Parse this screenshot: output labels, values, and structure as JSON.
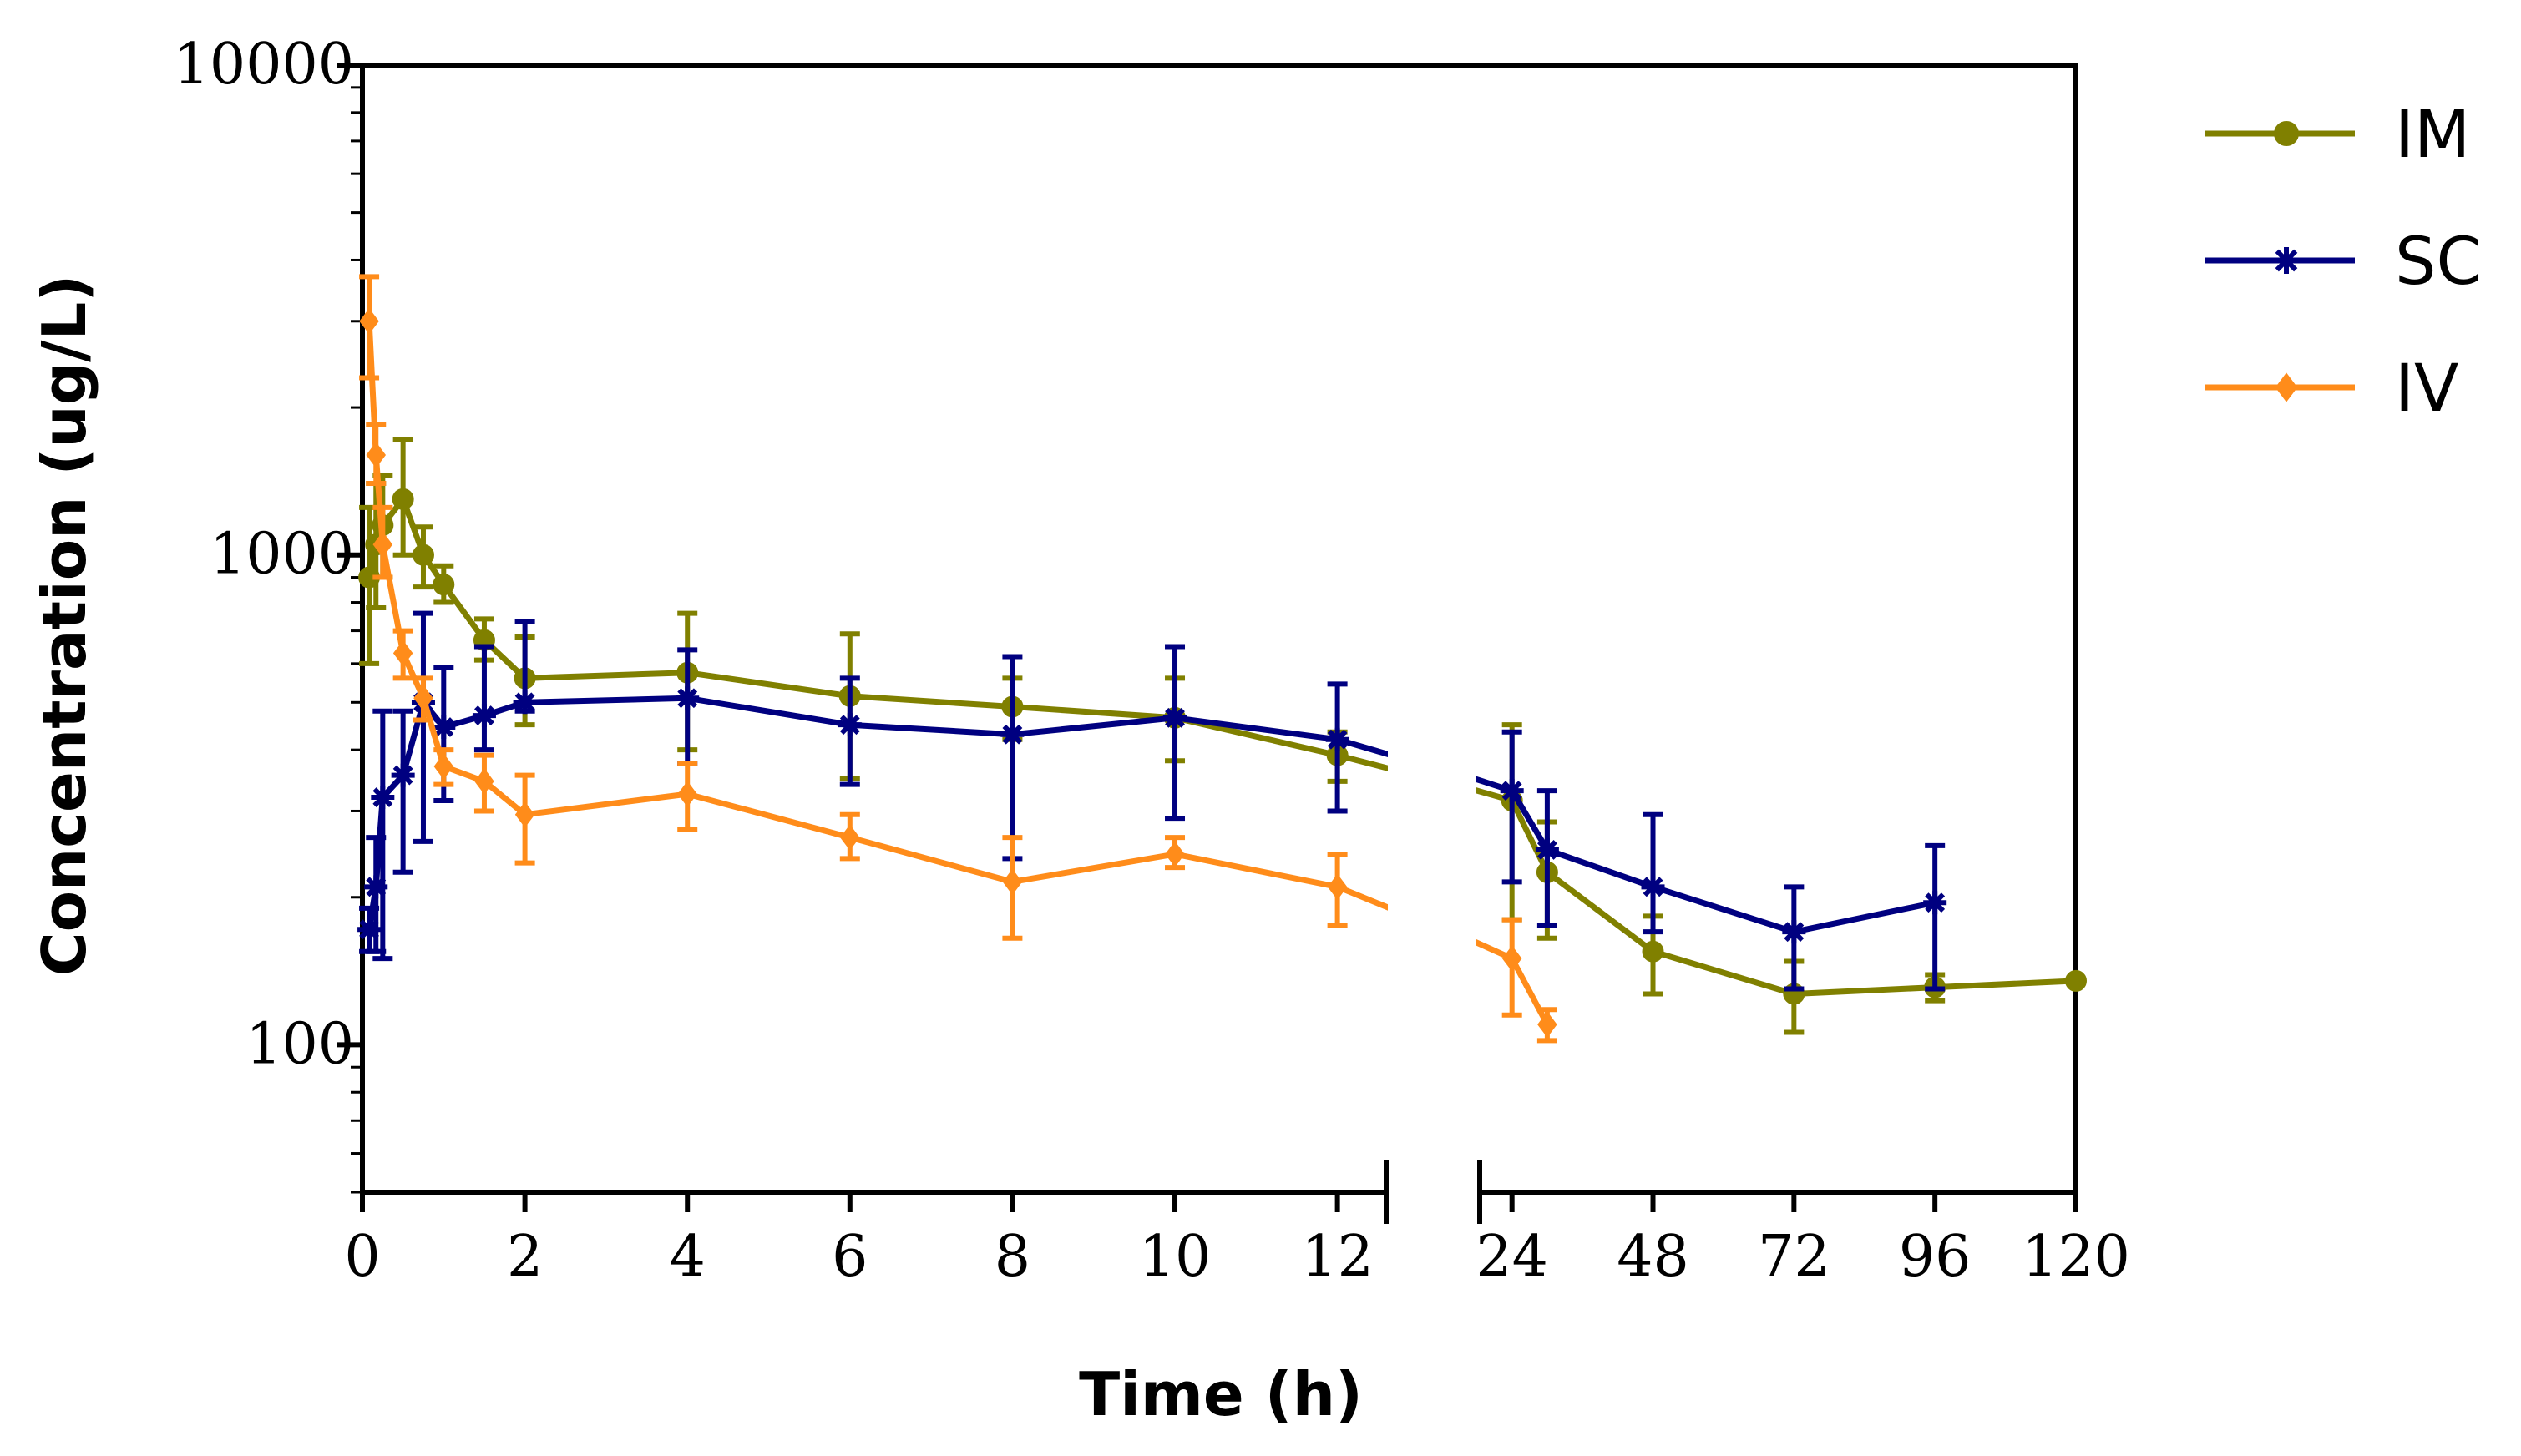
{
  "chart_data": {
    "type": "line",
    "title": "",
    "xlabel": "Time (h)",
    "ylabel": "Concentration (ug/L)",
    "yscale": "log",
    "ylim": [
      50,
      10000
    ],
    "y_ticks": [
      {
        "value": 100,
        "label": "100"
      },
      {
        "value": 1000,
        "label": "1000"
      },
      {
        "value": 10000,
        "label": "10000"
      }
    ],
    "x_segments": [
      {
        "range": [
          0,
          12.6
        ],
        "ticks": [
          {
            "value": 0,
            "label": "0"
          },
          {
            "value": 2,
            "label": "2"
          },
          {
            "value": 4,
            "label": "4"
          },
          {
            "value": 6,
            "label": "6"
          },
          {
            "value": 8,
            "label": "8"
          },
          {
            "value": 10,
            "label": "10"
          },
          {
            "value": 12,
            "label": "12"
          }
        ]
      },
      {
        "range": [
          18.5,
          120
        ],
        "ticks": [
          {
            "value": 24,
            "label": "24"
          },
          {
            "value": 48,
            "label": "48"
          },
          {
            "value": 72,
            "label": "72"
          },
          {
            "value": 96,
            "label": "96"
          },
          {
            "value": 120,
            "label": "120"
          }
        ]
      }
    ],
    "legend_position": "top-right",
    "series": [
      {
        "name": "IM",
        "color": "#808000",
        "marker": "circle",
        "points": [
          {
            "x": 0.083,
            "y": 900,
            "lo": 600,
            "hi": 1250
          },
          {
            "x": 0.167,
            "y": 1050,
            "lo": 780,
            "hi": 1400
          },
          {
            "x": 0.25,
            "y": 1150,
            "lo": 900,
            "hi": 1450
          },
          {
            "x": 0.5,
            "y": 1300,
            "lo": 1000,
            "hi": 1720
          },
          {
            "x": 0.75,
            "y": 1000,
            "lo": 860,
            "hi": 1140
          },
          {
            "x": 1,
            "y": 870,
            "lo": 800,
            "hi": 950
          },
          {
            "x": 1.5,
            "y": 670,
            "lo": 610,
            "hi": 740
          },
          {
            "x": 2,
            "y": 560,
            "lo": 450,
            "hi": 680
          },
          {
            "x": 4,
            "y": 575,
            "lo": 400,
            "hi": 760
          },
          {
            "x": 6,
            "y": 515,
            "lo": 350,
            "hi": 690
          },
          {
            "x": 8,
            "y": 490,
            "lo": 420,
            "hi": 560
          },
          {
            "x": 10,
            "y": 465,
            "lo": 380,
            "hi": 560
          },
          {
            "x": 12,
            "y": 390,
            "lo": 345,
            "hi": 435
          },
          {
            "x": 24,
            "y": 315,
            "lo": 180,
            "hi": 450
          },
          {
            "x": 30,
            "y": 225,
            "lo": 165,
            "hi": 285
          },
          {
            "x": 48,
            "y": 155,
            "lo": 127,
            "hi": 183
          },
          {
            "x": 72,
            "y": 127,
            "lo": 106,
            "hi": 148
          },
          {
            "x": 96,
            "y": 131,
            "lo": 123,
            "hi": 139
          },
          {
            "x": 120,
            "y": 135,
            "lo": 135,
            "hi": 135
          }
        ]
      },
      {
        "name": "SC",
        "color": "#000080",
        "marker": "asterisk",
        "points": [
          {
            "x": 0.083,
            "y": 172,
            "lo": 155,
            "hi": 190
          },
          {
            "x": 0.167,
            "y": 210,
            "lo": 155,
            "hi": 265
          },
          {
            "x": 0.25,
            "y": 320,
            "lo": 150,
            "hi": 480
          },
          {
            "x": 0.5,
            "y": 355,
            "lo": 225,
            "hi": 480
          },
          {
            "x": 0.75,
            "y": 500,
            "lo": 260,
            "hi": 760
          },
          {
            "x": 1,
            "y": 445,
            "lo": 315,
            "hi": 590
          },
          {
            "x": 1.5,
            "y": 470,
            "lo": 400,
            "hi": 650
          },
          {
            "x": 2,
            "y": 500,
            "lo": 480,
            "hi": 730
          },
          {
            "x": 4,
            "y": 510,
            "lo": 375,
            "hi": 640
          },
          {
            "x": 6,
            "y": 450,
            "lo": 340,
            "hi": 560
          },
          {
            "x": 8,
            "y": 430,
            "lo": 240,
            "hi": 620
          },
          {
            "x": 10,
            "y": 465,
            "lo": 290,
            "hi": 650
          },
          {
            "x": 12,
            "y": 420,
            "lo": 300,
            "hi": 545
          },
          {
            "x": 24,
            "y": 330,
            "lo": 215,
            "hi": 435
          },
          {
            "x": 30,
            "y": 250,
            "lo": 175,
            "hi": 330
          },
          {
            "x": 48,
            "y": 210,
            "lo": 170,
            "hi": 295
          },
          {
            "x": 72,
            "y": 170,
            "lo": 130,
            "hi": 210
          },
          {
            "x": 96,
            "y": 195,
            "lo": 130,
            "hi": 255
          }
        ]
      },
      {
        "name": "IV",
        "color": "#ff8c1a",
        "marker": "diamond",
        "points": [
          {
            "x": 0.083,
            "y": 3000,
            "lo": 2300,
            "hi": 3700
          },
          {
            "x": 0.167,
            "y": 1600,
            "lo": 1400,
            "hi": 1850
          },
          {
            "x": 0.25,
            "y": 1050,
            "lo": 900,
            "hi": 1250
          },
          {
            "x": 0.5,
            "y": 630,
            "lo": 560,
            "hi": 700
          },
          {
            "x": 0.75,
            "y": 510,
            "lo": 460,
            "hi": 560
          },
          {
            "x": 1,
            "y": 370,
            "lo": 340,
            "hi": 400
          },
          {
            "x": 1.5,
            "y": 345,
            "lo": 300,
            "hi": 390
          },
          {
            "x": 2,
            "y": 295,
            "lo": 235,
            "hi": 355
          },
          {
            "x": 4,
            "y": 325,
            "lo": 275,
            "hi": 375
          },
          {
            "x": 6,
            "y": 265,
            "lo": 240,
            "hi": 295
          },
          {
            "x": 8,
            "y": 215,
            "lo": 165,
            "hi": 265
          },
          {
            "x": 10,
            "y": 245,
            "lo": 230,
            "hi": 265
          },
          {
            "x": 12,
            "y": 210,
            "lo": 175,
            "hi": 245
          },
          {
            "x": 24,
            "y": 150,
            "lo": 115,
            "hi": 180
          },
          {
            "x": 30,
            "y": 110,
            "lo": 102,
            "hi": 118
          }
        ]
      }
    ]
  }
}
